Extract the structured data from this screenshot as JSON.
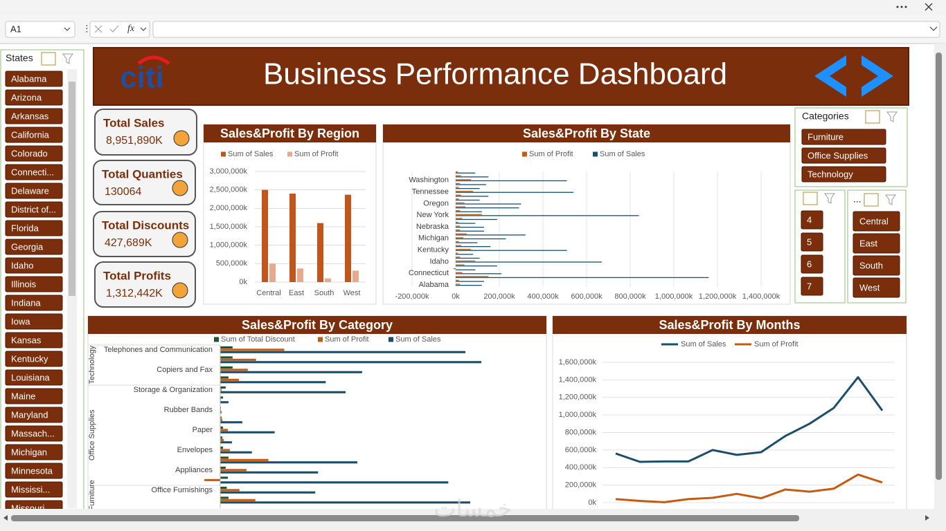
{
  "formula_bar": {
    "name_box": "A1",
    "function_label": "fx"
  },
  "header": {
    "logo": "citi",
    "title": "Business Performance Dashboard"
  },
  "slicers": {
    "states": {
      "title": "States",
      "items": [
        "Alabama",
        "Arizona",
        "Arkansas",
        "California",
        "Colorado",
        "Connecti...",
        "Delaware",
        "District of...",
        "Florida",
        "Georgia",
        "Idaho",
        "Illinois",
        "Indiana",
        "Iowa",
        "Kansas",
        "Kentucky",
        "Louisiana",
        "Maine",
        "Maryland",
        "Massach...",
        "Michigan",
        "Minnesota",
        "Mississi...",
        "Missouri"
      ]
    },
    "categories": {
      "title": "Categories",
      "items": [
        "Furniture",
        "Office Supplies",
        "Technology"
      ]
    },
    "numbers": {
      "items": [
        "4",
        "5",
        "6",
        "7"
      ]
    },
    "regions": {
      "title": "...",
      "items": [
        "Central",
        "East",
        "South",
        "West"
      ]
    }
  },
  "kpis": [
    {
      "label": "Total Sales",
      "value": "8,951,890K"
    },
    {
      "label": "Total Quanties",
      "value": "130064"
    },
    {
      "label": "Total Discounts",
      "value": "427,689K"
    },
    {
      "label": "Total Profits",
      "value": "1,312,442K"
    }
  ],
  "watermark": "خمسات",
  "chart_data": [
    {
      "type": "bar",
      "title": "Sales&Profit By Region",
      "categories": [
        "Central",
        "East",
        "South",
        "West"
      ],
      "series": [
        {
          "name": "Sum of Sales",
          "color": "#c0561c",
          "values": [
            2500000,
            2400000,
            1600000,
            2370000
          ]
        },
        {
          "name": "Sum of Profit",
          "color": "#e6a98e",
          "values": [
            500000,
            370000,
            100000,
            310000
          ]
        }
      ],
      "ylim": [
        0,
        3000000
      ],
      "yticks": [
        {
          "value": 0,
          "label": "0k"
        },
        {
          "value": 500000,
          "label": "500,000k"
        },
        {
          "value": 1000000,
          "label": "1,000,000k"
        },
        {
          "value": 1500000,
          "label": "1,500,000k"
        },
        {
          "value": 2000000,
          "label": "2,000,000k"
        },
        {
          "value": 2500000,
          "label": "2,500,000k"
        },
        {
          "value": 3000000,
          "label": "3,000,000k"
        }
      ],
      "grid": true
    },
    {
      "type": "barh",
      "title": "Sales&Profit By State",
      "categories": [
        "Alabama",
        null,
        null,
        "Connecticut",
        null,
        null,
        "Idaho",
        null,
        null,
        "Kentucky",
        null,
        null,
        "Michigan",
        null,
        null,
        "Nebraska",
        null,
        null,
        "New York",
        null,
        null,
        "Oregon",
        null,
        null,
        "Tennessee",
        null,
        null,
        "Washington",
        null,
        null
      ],
      "series": [
        {
          "name": "Sum of Profit",
          "color": "#c55a11",
          "values": [
            20000,
            15000,
            150000,
            30000,
            -10000,
            40000,
            90000,
            20000,
            10000,
            70000,
            25000,
            15000,
            35000,
            50000,
            20000,
            20000,
            12000,
            30000,
            120000,
            20000,
            45000,
            40000,
            15000,
            25000,
            80000,
            15000,
            20000,
            70000,
            25000,
            10000
          ]
        },
        {
          "name": "Sum of Sales",
          "color": "#1b4e6b",
          "values": [
            120000,
            130000,
            1160000,
            210000,
            90000,
            190000,
            670000,
            110000,
            80000,
            510000,
            160000,
            100000,
            230000,
            320000,
            130000,
            130000,
            90000,
            190000,
            840000,
            120000,
            290000,
            300000,
            110000,
            150000,
            540000,
            110000,
            140000,
            510000,
            150000,
            90000
          ]
        }
      ],
      "xlim": [
        -200000,
        1400000
      ],
      "xticks": [
        {
          "value": -200000,
          "label": "-200,000k"
        },
        {
          "value": 0,
          "label": "0k"
        },
        {
          "value": 200000,
          "label": "200,000k"
        },
        {
          "value": 400000,
          "label": "400,000k"
        },
        {
          "value": 600000,
          "label": "600,000k"
        },
        {
          "value": 800000,
          "label": "800,000k"
        },
        {
          "value": 1000000,
          "label": "1,000,000k"
        },
        {
          "value": 1200000,
          "label": "1,200,000k"
        },
        {
          "value": 1400000,
          "label": "1,400,000k"
        }
      ],
      "grid": true
    },
    {
      "type": "barh",
      "title": "Sales&Profit By Category",
      "groups": [
        "Technology",
        "Office Supplies",
        "Furniture"
      ],
      "categories": [
        "Telephones and Communication",
        null,
        "Copiers and Fax",
        null,
        "Storage & Organization",
        null,
        "Rubber Bands",
        null,
        "Paper",
        null,
        "Envelopes",
        null,
        "Appliances",
        null,
        "Office Furnishings",
        null
      ],
      "series": [
        {
          "name": "Sum of Total Discount",
          "color": "#1e5631",
          "values": [
            57000,
            57000,
            57000,
            38000,
            25000,
            13000,
            3000,
            6000,
            13000,
            10000,
            13000,
            38000,
            25000,
            35000,
            30000,
            38000
          ]
        },
        {
          "name": "Sum of Profit",
          "color": "#c55a11",
          "values": [
            295000,
            165000,
            127000,
            86000,
            6000,
            3000,
            3000,
            10000,
            35000,
            16000,
            44000,
            222000,
            121000,
            -73000,
            89000,
            162000
          ]
        },
        {
          "name": "Sum of Sales",
          "color": "#1b4e6b",
          "values": [
            1130000,
            1203000,
            654000,
            486000,
            578000,
            38000,
            6000,
            102000,
            251000,
            54000,
            146000,
            632000,
            451000,
            1051000,
            438000,
            1152000
          ]
        }
      ],
      "xlim": [
        0,
        1500000
      ]
    },
    {
      "type": "line",
      "title": "Sales&Profit By Months",
      "categories": [
        null,
        null,
        null,
        null,
        null,
        null,
        null,
        null,
        null,
        null,
        null,
        null
      ],
      "series": [
        {
          "name": "Sum of Sales",
          "color": "#1b4e6b",
          "values": [
            560000,
            465000,
            470000,
            470000,
            600000,
            545000,
            575000,
            760000,
            900000,
            1080000,
            1430000,
            1050000
          ]
        },
        {
          "name": "Sum of Profit",
          "color": "#c55a11",
          "values": [
            40000,
            20000,
            5000,
            40000,
            55000,
            100000,
            50000,
            150000,
            125000,
            160000,
            320000,
            230000
          ]
        }
      ],
      "ylim": [
        0,
        1600000
      ],
      "yticks": [
        {
          "value": 0,
          "label": "0k"
        },
        {
          "value": 200000,
          "label": "200,000k"
        },
        {
          "value": 400000,
          "label": "400,000k"
        },
        {
          "value": 600000,
          "label": "600,000k"
        },
        {
          "value": 800000,
          "label": "800,000k"
        },
        {
          "value": 1000000,
          "label": "1,000,000k"
        },
        {
          "value": 1200000,
          "label": "1,200,000k"
        },
        {
          "value": 1400000,
          "label": "1,400,000k"
        },
        {
          "value": 1600000,
          "label": "1,600,000k"
        }
      ],
      "grid": true
    }
  ]
}
